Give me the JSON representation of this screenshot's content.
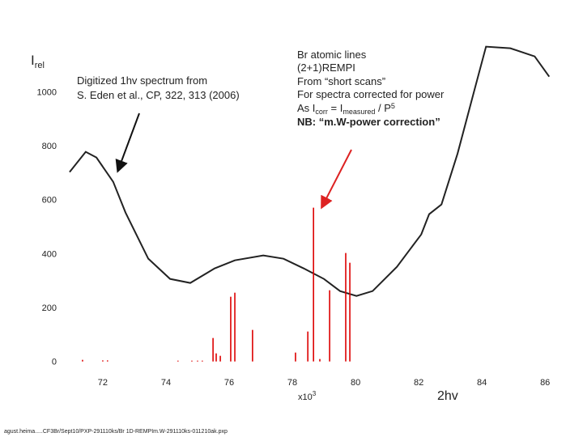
{
  "chart_data": {
    "type": "line",
    "y_axis_label": {
      "main": "I",
      "sub": "rel"
    },
    "x_axis_label": {
      "main": "x10",
      "sup": "3"
    },
    "x_title": "2hv",
    "annotation_left": [
      "Digitized 1hv spectrum from",
      "S. Eden et al., CP, 322, 313 (2006)"
    ],
    "annotation_right": {
      "lines": [
        "Br atomic lines",
        "(2+1)REMPI",
        "From “short scans”",
        "For spectra corrected for power"
      ],
      "formula": [
        "As I",
        "corr",
        " = I",
        "measured",
        " / P",
        "5"
      ],
      "note": "NB: “m.W-power correction”"
    },
    "footer": "agust.heima.....CF3Br/Sept10/PXP-291110ks/Br 1D-REMPIm.W-291110ks-011210ak.pxp",
    "xlim": [
      70.9,
      86.2
    ],
    "ylim": [
      -70,
      1190
    ],
    "xticks": [
      72,
      74,
      76,
      78,
      80,
      82,
      84,
      86
    ],
    "yticks": [
      0,
      200,
      400,
      600,
      800,
      1000
    ],
    "grid": false,
    "series": [
      {
        "style": "line",
        "color": "#222222",
        "x": [
          70.95,
          71.46,
          71.8,
          72.33,
          72.72,
          73.44,
          74.13,
          74.77,
          75.54,
          76.18,
          77.08,
          77.72,
          78.36,
          79.0,
          79.51,
          80.03,
          80.54,
          81.31,
          82.08,
          82.33,
          82.72,
          83.23,
          83.74,
          84.13,
          84.9,
          85.67,
          86.13
        ],
        "values": [
          702,
          777,
          756,
          666,
          552,
          381,
          306,
          291,
          345,
          375,
          393,
          381,
          345,
          306,
          261,
          243,
          261,
          351,
          471,
          546,
          582,
          771,
          996,
          1167,
          1161,
          1131,
          1056
        ]
      },
      {
        "style": "stick",
        "color": "#dd0000",
        "x": [
          71.36,
          72.0,
          72.15,
          74.38,
          74.82,
          75.0,
          75.15,
          75.49,
          75.59,
          75.72,
          76.05,
          76.18,
          76.74,
          78.1,
          78.49,
          78.67,
          78.87,
          79.18,
          79.69,
          79.82
        ],
        "values": [
          6,
          4,
          4,
          3,
          3,
          3,
          3,
          87,
          30,
          21,
          240,
          255,
          117,
          33,
          111,
          570,
          9,
          264,
          402,
          366
        ]
      }
    ]
  }
}
